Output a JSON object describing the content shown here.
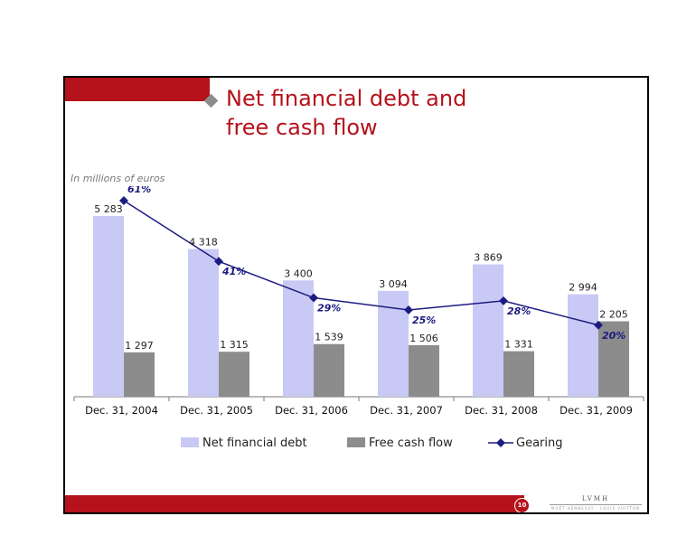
{
  "slide": {
    "title": "Net financial debt and\nfree cash flow",
    "units_note": "In millions of euros",
    "page_number": "10",
    "logo_text": "LVMH",
    "logo_subtext": "MOËT HENNESSY . LOUIS VUITTON"
  },
  "colors": {
    "net_debt": "#c9c9f5",
    "free_cash_flow": "#8c8c8c",
    "gearing": "#1c1c80",
    "brand_red": "#b5121b"
  },
  "chart_data": {
    "type": "bar",
    "categories": [
      "Dec. 31, 2004",
      "Dec. 31, 2005",
      "Dec. 31, 2006",
      "Dec. 31, 2007",
      "Dec. 31, 2008",
      "Dec. 31, 2009"
    ],
    "series": [
      {
        "name": "Net financial debt",
        "values": [
          5283,
          4318,
          3400,
          3094,
          3869,
          2994
        ],
        "labels": [
          "5 283",
          "4 318",
          "3 400",
          "3 094",
          "3 869",
          "2 994"
        ]
      },
      {
        "name": "Free cash flow",
        "values": [
          1297,
          1315,
          1539,
          1506,
          1331,
          2205
        ],
        "labels": [
          "1 297",
          "1 315",
          "1 539",
          "1 506",
          "1 331",
          "2 205"
        ]
      },
      {
        "name": "Gearing",
        "type": "line",
        "values": [
          61,
          41,
          29,
          25,
          28,
          20
        ],
        "labels": [
          "61%",
          "41%",
          "29%",
          "25%",
          "28%",
          "20%"
        ]
      }
    ],
    "ylim": [
      0,
      5283
    ],
    "gearing_ylim": [
      0,
      61
    ],
    "legend_position": "bottom",
    "grid": false
  }
}
